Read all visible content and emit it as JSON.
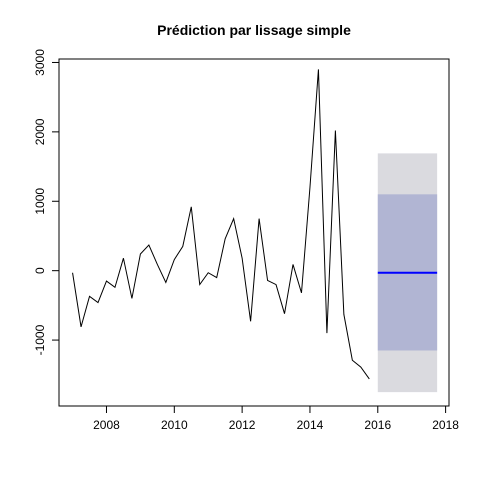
{
  "chart_data": {
    "type": "line",
    "title": "Prédiction par lissage simple",
    "xlabel": "",
    "ylabel": "",
    "xlim": [
      2006.6,
      2018.1
    ],
    "ylim": [
      -1950,
      3050
    ],
    "x_ticks": [
      2008,
      2010,
      2012,
      2014,
      2016,
      2018
    ],
    "y_ticks": [
      -1000,
      0,
      1000,
      2000,
      3000
    ],
    "x_tick_labels": [
      "2008",
      "2010",
      "2012",
      "2014",
      "2016",
      "2018"
    ],
    "y_tick_labels": [
      "-1000",
      "0",
      "1000",
      "2000",
      "3000"
    ],
    "series": [
      {
        "color": "#000000",
        "x": [
          2007.0,
          2007.25,
          2007.5,
          2007.75,
          2008.0,
          2008.25,
          2008.5,
          2008.75,
          2009.0,
          2009.25,
          2009.5,
          2009.75,
          2010.0,
          2010.25,
          2010.5,
          2010.75,
          2011.0,
          2011.25,
          2011.5,
          2011.75,
          2012.0,
          2012.25,
          2012.5,
          2012.75,
          2013.0,
          2013.25,
          2013.5,
          2013.75,
          2014.0,
          2014.25,
          2014.5,
          2014.75,
          2015.0,
          2015.25,
          2015.5,
          2015.75
        ],
        "values": [
          -30,
          -810,
          -370,
          -460,
          -150,
          -240,
          180,
          -400,
          240,
          370,
          90,
          -170,
          160,
          350,
          920,
          -200,
          -30,
          -100,
          460,
          750,
          180,
          -730,
          750,
          -140,
          -200,
          -620,
          90,
          -320,
          1200,
          2900,
          -900,
          2020,
          -630,
          -1290,
          -1390,
          -1560
        ]
      }
    ],
    "forecast": {
      "x_start": 2016.0,
      "x_end": 2017.75,
      "mean": -30,
      "mean_color": "#0000ff",
      "interval_80": [
        -1150,
        1100
      ],
      "interval_95": [
        -1750,
        1690
      ],
      "color_80": "#b1b5d3",
      "color_95": "#dadadf"
    },
    "grid": false,
    "legend": "none"
  }
}
